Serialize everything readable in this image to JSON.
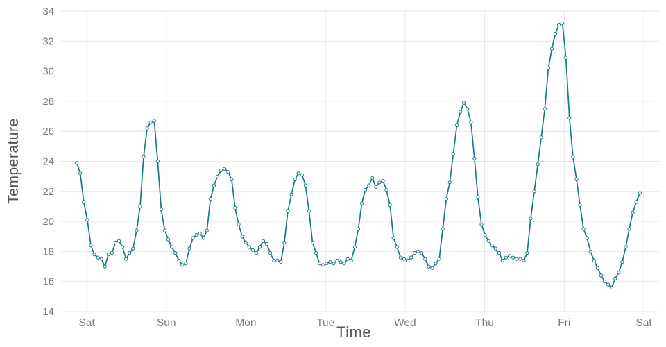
{
  "chart_data": {
    "type": "line",
    "title": "",
    "xlabel": "Time",
    "ylabel": "Temperature",
    "x_tick_labels": [
      "Sat",
      "Sun",
      "Mon",
      "Tue",
      "Wed",
      "Thu",
      "Fri",
      "Sat"
    ],
    "y_ticks": [
      14,
      16,
      18,
      20,
      22,
      24,
      26,
      28,
      30,
      32,
      34
    ],
    "ylim": [
      14,
      34
    ],
    "x_start_day": -0.125,
    "x_end_day": 6.95,
    "grid": true,
    "legend": "none",
    "marker": "open-circle",
    "line_color": "#17788a",
    "marker_fill": "#ffffff",
    "grid_color": "#e7e7e7",
    "tick_label_color": "#7a7a7a",
    "axis_title_color": "#555555",
    "series": [
      {
        "name": "Temperature",
        "values": [
          23.9,
          23.2,
          21.3,
          20.1,
          18.4,
          17.8,
          17.6,
          17.5,
          17.0,
          17.8,
          17.9,
          18.6,
          18.7,
          18.3,
          17.5,
          17.9,
          18.2,
          19.4,
          21.0,
          24.3,
          26.2,
          26.6,
          26.7,
          24.0,
          20.8,
          19.4,
          18.8,
          18.3,
          17.9,
          17.4,
          17.1,
          17.2,
          18.2,
          18.9,
          19.1,
          19.2,
          18.9,
          19.4,
          21.5,
          22.4,
          23.0,
          23.4,
          23.5,
          23.3,
          22.8,
          20.9,
          19.8,
          19.0,
          18.6,
          18.3,
          18.1,
          17.9,
          18.3,
          18.7,
          18.5,
          17.9,
          17.4,
          17.4,
          17.3,
          18.6,
          20.7,
          21.8,
          22.8,
          23.2,
          23.1,
          22.4,
          20.7,
          18.6,
          17.9,
          17.2,
          17.1,
          17.2,
          17.3,
          17.2,
          17.4,
          17.3,
          17.2,
          17.5,
          17.4,
          18.3,
          19.5,
          21.2,
          22.1,
          22.4,
          22.9,
          22.3,
          22.6,
          22.7,
          22.1,
          21.1,
          18.9,
          18.3,
          17.6,
          17.5,
          17.4,
          17.6,
          17.9,
          18.0,
          17.9,
          17.5,
          17.0,
          16.9,
          17.2,
          17.5,
          19.5,
          21.5,
          22.6,
          24.5,
          26.4,
          27.3,
          27.9,
          27.5,
          26.6,
          24.2,
          21.6,
          19.8,
          19.1,
          18.7,
          18.4,
          18.2,
          17.9,
          17.4,
          17.6,
          17.7,
          17.6,
          17.5,
          17.5,
          17.4,
          17.9,
          20.2,
          22.0,
          23.8,
          25.6,
          27.5,
          30.2,
          31.5,
          32.5,
          33.1,
          33.2,
          30.9,
          26.9,
          24.3,
          22.8,
          21.1,
          19.5,
          18.9,
          18.0,
          17.4,
          16.9,
          16.4,
          16.0,
          15.8,
          15.6,
          16.2,
          16.6,
          17.3,
          18.3,
          19.5,
          20.6,
          21.3,
          21.9
        ]
      }
    ]
  }
}
